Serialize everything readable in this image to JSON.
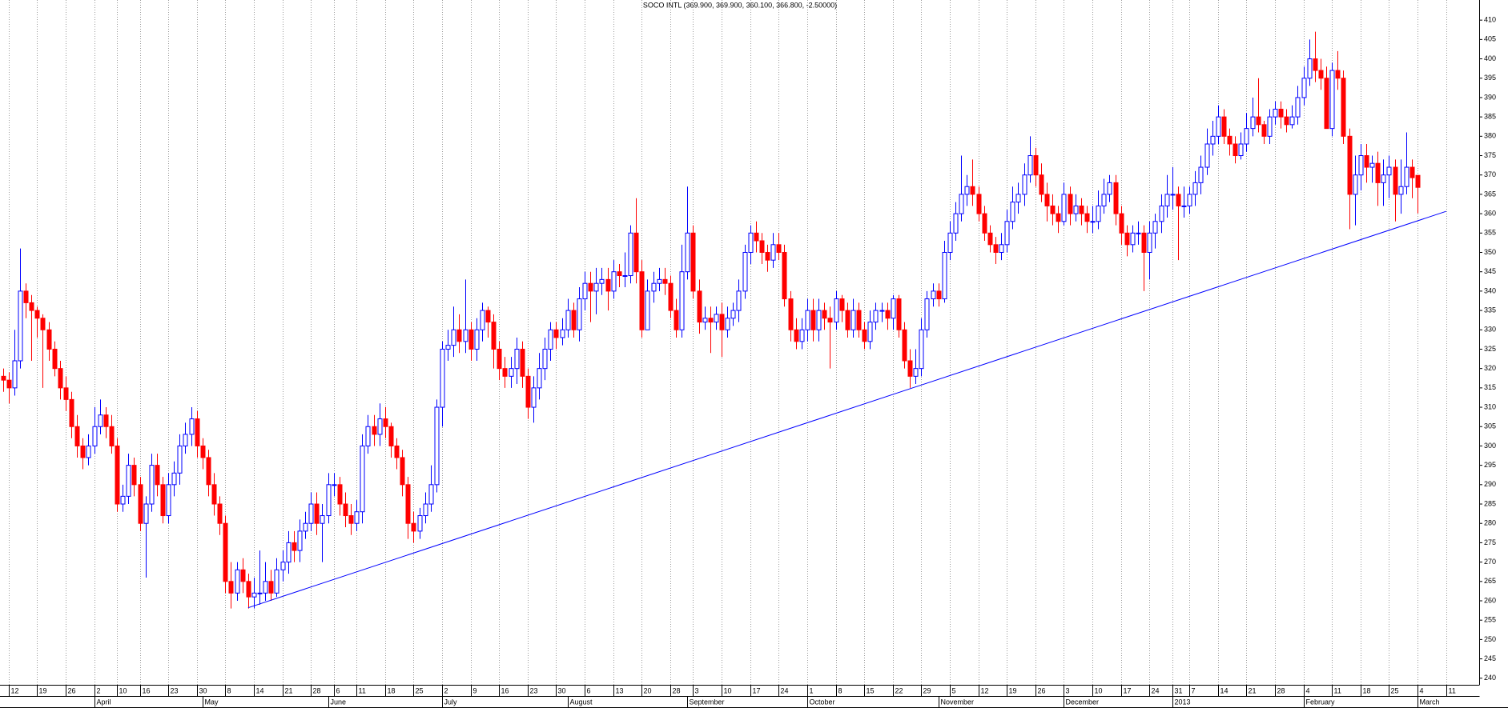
{
  "chart_data": {
    "type": "candlestick",
    "title": "SOCO INTL (369.900, 369.900, 360.100, 366.800, -2.50000)",
    "xlim": [
      -0.5,
      258.8
    ],
    "ylim": [
      238.3,
      415.2
    ],
    "yticks": [
      240,
      245,
      250,
      255,
      260,
      265,
      270,
      275,
      280,
      285,
      290,
      295,
      300,
      305,
      310,
      315,
      320,
      325,
      330,
      335,
      340,
      345,
      350,
      355,
      360,
      365,
      370,
      375,
      380,
      385,
      390,
      395,
      400,
      405,
      410
    ],
    "grid": true,
    "up_color": "#0000ff",
    "down_color": "#ff0000",
    "xticks": [
      {
        "value": 1,
        "label": "12"
      },
      {
        "value": 6,
        "label": "19"
      },
      {
        "value": 11,
        "label": "26"
      },
      {
        "value": 16,
        "label": "2"
      },
      {
        "value": 20,
        "label": "10"
      },
      {
        "value": 24,
        "label": "16"
      },
      {
        "value": 29,
        "label": "23"
      },
      {
        "value": 34,
        "label": "30"
      },
      {
        "value": 39,
        "label": "8"
      },
      {
        "value": 44,
        "label": "14"
      },
      {
        "value": 49,
        "label": "21"
      },
      {
        "value": 54,
        "label": "28"
      },
      {
        "value": 58,
        "label": "6"
      },
      {
        "value": 62,
        "label": "11"
      },
      {
        "value": 67,
        "label": "18"
      },
      {
        "value": 72,
        "label": "25"
      },
      {
        "value": 77,
        "label": "2"
      },
      {
        "value": 82,
        "label": "9"
      },
      {
        "value": 87,
        "label": "16"
      },
      {
        "value": 92,
        "label": "23"
      },
      {
        "value": 97,
        "label": "30"
      },
      {
        "value": 102,
        "label": "6"
      },
      {
        "value": 107,
        "label": "13"
      },
      {
        "value": 112,
        "label": "20"
      },
      {
        "value": 117,
        "label": "28"
      },
      {
        "value": 121,
        "label": "3"
      },
      {
        "value": 126,
        "label": "10"
      },
      {
        "value": 131,
        "label": "17"
      },
      {
        "value": 136,
        "label": "24"
      },
      {
        "value": 141,
        "label": "1"
      },
      {
        "value": 146,
        "label": "8"
      },
      {
        "value": 151,
        "label": "15"
      },
      {
        "value": 156,
        "label": "22"
      },
      {
        "value": 161,
        "label": "29"
      },
      {
        "value": 166,
        "label": "5"
      },
      {
        "value": 171,
        "label": "12"
      },
      {
        "value": 176,
        "label": "19"
      },
      {
        "value": 181,
        "label": "26"
      },
      {
        "value": 186,
        "label": "3"
      },
      {
        "value": 191,
        "label": "10"
      },
      {
        "value": 196,
        "label": "17"
      },
      {
        "value": 201,
        "label": "24"
      },
      {
        "value": 205,
        "label": "31"
      },
      {
        "value": 208,
        "label": "7"
      },
      {
        "value": 213,
        "label": "14"
      },
      {
        "value": 218,
        "label": "21"
      },
      {
        "value": 223,
        "label": "28"
      },
      {
        "value": 228,
        "label": "4"
      },
      {
        "value": 233,
        "label": "11"
      },
      {
        "value": 238,
        "label": "18"
      },
      {
        "value": 243,
        "label": "25"
      },
      {
        "value": 248,
        "label": "4"
      },
      {
        "value": 253,
        "label": "11"
      }
    ],
    "month_labels": [
      {
        "value": 16,
        "label": "April"
      },
      {
        "value": 35,
        "label": "May"
      },
      {
        "value": 57,
        "label": "June"
      },
      {
        "value": 77,
        "label": "July"
      },
      {
        "value": 99,
        "label": "August"
      },
      {
        "value": 120,
        "label": "September"
      },
      {
        "value": 141,
        "label": "October"
      },
      {
        "value": 164,
        "label": "November"
      },
      {
        "value": 186,
        "label": "December"
      },
      {
        "value": 205,
        "label": "2013"
      },
      {
        "value": 228,
        "label": "February"
      },
      {
        "value": 248,
        "label": "March"
      }
    ],
    "series": {
      "open": [
        318,
        317,
        315,
        322,
        340,
        337,
        335,
        333,
        330,
        325,
        320,
        315,
        312,
        305,
        300,
        297,
        300,
        305,
        308,
        305,
        300,
        285,
        287,
        295,
        290,
        280,
        285,
        295,
        290,
        282,
        290,
        293,
        300,
        303,
        307,
        300,
        297,
        290,
        285,
        280,
        265,
        262,
        268,
        265,
        261,
        262,
        262,
        265,
        262,
        268,
        270,
        275,
        273,
        278,
        280,
        285,
        280,
        282,
        290,
        290,
        285,
        282,
        280,
        283,
        300,
        305,
        303,
        307,
        305,
        300,
        297,
        290,
        280,
        278,
        282,
        285,
        290,
        310,
        325,
        326,
        330,
        327,
        330,
        325,
        330,
        335,
        332,
        325,
        320,
        318,
        320,
        325,
        318,
        310,
        315,
        320,
        325,
        330,
        328,
        330,
        335,
        330,
        338,
        342,
        340,
        342,
        343,
        340,
        345,
        344,
        344,
        355,
        345,
        330,
        340,
        342,
        343,
        342,
        335,
        330,
        345,
        355,
        340,
        332,
        333,
        332,
        334,
        330,
        333,
        335,
        340,
        350,
        355,
        353,
        350,
        348,
        352,
        350,
        338,
        330,
        327,
        330,
        335,
        330,
        335,
        333,
        332,
        338,
        335,
        330,
        335,
        330,
        327,
        332,
        335,
        335,
        333,
        338,
        330,
        322,
        318,
        320,
        330,
        338,
        340,
        338,
        350,
        355,
        360,
        365,
        367,
        365,
        360,
        355,
        352,
        350,
        352,
        358,
        363,
        365,
        370,
        375,
        370,
        365,
        362,
        360,
        358,
        365,
        360,
        362,
        360,
        358,
        358,
        362,
        365,
        368,
        360,
        355,
        352,
        355,
        355,
        350,
        355,
        358,
        362,
        365,
        365,
        362,
        362,
        365,
        368,
        372,
        378,
        380,
        385,
        380,
        378,
        375,
        378,
        382,
        385,
        383,
        380,
        385,
        387,
        385,
        383,
        385,
        390,
        395,
        400,
        397,
        395,
        382,
        397,
        395,
        380,
        365,
        370,
        375,
        372,
        373,
        368,
        370,
        372,
        365,
        367,
        372,
        369.9
      ],
      "high": [
        320,
        319,
        330,
        351,
        342,
        339,
        336,
        334,
        332,
        327,
        322,
        318,
        314,
        308,
        302,
        303,
        310,
        312,
        310,
        308,
        302,
        290,
        298,
        297,
        292,
        287,
        298,
        298,
        292,
        293,
        296,
        303,
        306,
        310,
        309,
        302,
        299,
        293,
        287,
        282,
        270,
        270,
        271,
        267,
        266,
        273,
        270,
        268,
        271,
        273,
        278,
        278,
        281,
        283,
        288,
        288,
        285,
        293,
        293,
        292,
        288,
        285,
        286,
        303,
        308,
        308,
        311,
        310,
        306,
        302,
        299,
        292,
        283,
        284,
        288,
        295,
        312,
        327,
        330,
        336,
        334,
        343,
        332,
        333,
        337,
        336,
        334,
        327,
        323,
        323,
        328,
        327,
        320,
        318,
        324,
        328,
        332,
        332,
        333,
        338,
        337,
        341,
        345,
        345,
        346,
        346,
        346,
        348,
        347,
        350,
        357,
        364,
        348,
        343,
        345,
        346,
        346,
        344,
        338,
        352,
        367,
        357,
        343,
        336,
        336,
        336,
        337,
        336,
        337,
        343,
        352,
        357,
        358,
        355,
        352,
        355,
        355,
        352,
        340,
        333,
        333,
        338,
        338,
        338,
        337,
        336,
        340,
        339,
        337,
        338,
        337,
        332,
        335,
        337,
        337,
        337,
        339,
        339,
        332,
        325,
        325,
        333,
        340,
        342,
        342,
        353,
        358,
        363,
        375,
        370,
        374,
        367,
        362,
        357,
        354,
        355,
        361,
        367,
        368,
        373,
        380,
        377,
        373,
        368,
        365,
        362,
        368,
        367,
        365,
        364,
        362,
        362,
        366,
        369,
        370,
        370,
        362,
        357,
        357,
        358,
        357,
        358,
        360,
        365,
        370,
        372,
        367,
        367,
        367,
        371,
        375,
        382,
        384,
        388,
        387,
        382,
        380,
        381,
        386,
        390,
        395,
        384,
        387,
        389,
        389,
        387,
        388,
        393,
        398,
        405,
        407,
        400,
        398,
        399,
        402,
        397,
        382,
        375,
        378,
        378,
        375,
        376,
        374,
        375,
        374,
        374,
        381,
        374,
        369.9
      ],
      "low": [
        314,
        311,
        313,
        320,
        333,
        322,
        328,
        315,
        322,
        318,
        312,
        309,
        302,
        297,
        294,
        295,
        298,
        303,
        302,
        298,
        283,
        283,
        285,
        287,
        278,
        266,
        283,
        287,
        280,
        280,
        287,
        290,
        298,
        300,
        297,
        294,
        287,
        282,
        277,
        262,
        258,
        260,
        262,
        258,
        258,
        259,
        260,
        260,
        261,
        265,
        267,
        270,
        270,
        276,
        278,
        277,
        270,
        280,
        287,
        282,
        279,
        277,
        278,
        280,
        298,
        300,
        300,
        302,
        297,
        294,
        287,
        276,
        275,
        276,
        280,
        283,
        288,
        305,
        322,
        323,
        324,
        324,
        322,
        322,
        327,
        328,
        320,
        317,
        315,
        315,
        316,
        315,
        307,
        306,
        312,
        317,
        322,
        325,
        326,
        328,
        328,
        327,
        335,
        332,
        334,
        339,
        335,
        338,
        341,
        341,
        342,
        342,
        328,
        330,
        337,
        340,
        339,
        333,
        328,
        328,
        343,
        338,
        329,
        330,
        324,
        330,
        323,
        328,
        331,
        332,
        338,
        347,
        350,
        347,
        345,
        346,
        348,
        336,
        327,
        325,
        325,
        327,
        327,
        327,
        330,
        320,
        330,
        332,
        328,
        328,
        328,
        325,
        325,
        330,
        332,
        330,
        330,
        328,
        320,
        315,
        316,
        318,
        328,
        336,
        336,
        337,
        348,
        353,
        358,
        362,
        362,
        358,
        353,
        350,
        347,
        348,
        350,
        356,
        360,
        362,
        368,
        367,
        363,
        358,
        357,
        355,
        357,
        357,
        358,
        357,
        355,
        355,
        356,
        360,
        363,
        357,
        352,
        349,
        350,
        352,
        340,
        343,
        351,
        355,
        359,
        361,
        348,
        359,
        360,
        362,
        365,
        370,
        375,
        378,
        378,
        375,
        373,
        374,
        376,
        380,
        381,
        378,
        378,
        383,
        382,
        381,
        382,
        383,
        388,
        393,
        394,
        392,
        382,
        380,
        392,
        378,
        356,
        357,
        366,
        368,
        368,
        362,
        362,
        364,
        358,
        360,
        365,
        364,
        360.1
      ],
      "close": [
        317,
        315,
        322,
        340,
        337,
        335,
        333,
        330,
        325,
        320,
        315,
        312,
        305,
        300,
        297,
        300,
        305,
        308,
        305,
        300,
        285,
        287,
        295,
        290,
        280,
        285,
        295,
        290,
        282,
        290,
        293,
        300,
        303,
        307,
        300,
        297,
        290,
        285,
        280,
        265,
        262,
        268,
        265,
        261,
        262,
        262,
        265,
        262,
        268,
        270,
        275,
        273,
        278,
        280,
        285,
        280,
        282,
        290,
        290,
        285,
        282,
        280,
        283,
        300,
        305,
        303,
        307,
        305,
        300,
        297,
        290,
        280,
        278,
        282,
        285,
        290,
        310,
        325,
        326,
        330,
        327,
        330,
        325,
        330,
        335,
        332,
        325,
        320,
        318,
        320,
        325,
        318,
        310,
        315,
        320,
        325,
        330,
        328,
        330,
        335,
        330,
        338,
        342,
        340,
        342,
        343,
        340,
        345,
        344,
        344,
        355,
        345,
        330,
        340,
        342,
        343,
        342,
        335,
        330,
        345,
        355,
        340,
        332,
        333,
        332,
        334,
        330,
        333,
        335,
        340,
        350,
        355,
        353,
        350,
        348,
        352,
        350,
        338,
        330,
        327,
        330,
        335,
        330,
        335,
        333,
        332,
        338,
        335,
        330,
        335,
        330,
        327,
        332,
        335,
        335,
        333,
        338,
        330,
        322,
        318,
        320,
        330,
        338,
        340,
        338,
        350,
        355,
        360,
        365,
        367,
        365,
        360,
        355,
        352,
        350,
        352,
        358,
        363,
        365,
        370,
        375,
        370,
        365,
        362,
        360,
        358,
        365,
        360,
        362,
        360,
        358,
        358,
        362,
        365,
        368,
        360,
        355,
        352,
        355,
        355,
        350,
        355,
        358,
        362,
        365,
        365,
        362,
        362,
        365,
        368,
        372,
        378,
        380,
        385,
        380,
        378,
        375,
        378,
        382,
        385,
        383,
        380,
        385,
        387,
        385,
        383,
        385,
        390,
        395,
        400,
        397,
        395,
        382,
        397,
        395,
        380,
        365,
        370,
        375,
        372,
        373,
        368,
        370,
        372,
        365,
        367,
        372,
        369.3,
        366.8
      ]
    },
    "trendline": {
      "color": "#0000ff",
      "x": [
        43,
        253
      ],
      "y": [
        258.2,
        360.6
      ]
    }
  }
}
